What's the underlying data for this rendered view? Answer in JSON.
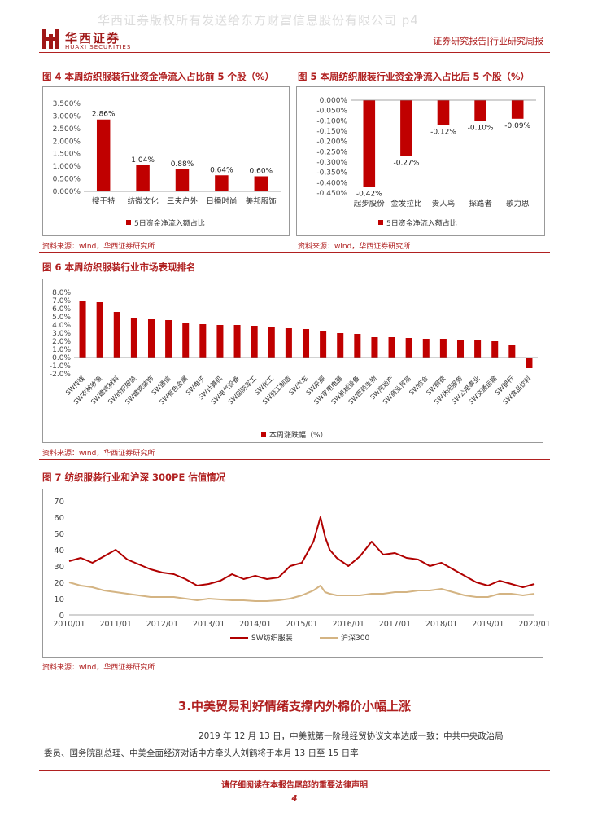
{
  "header": {
    "watermark": "华西证券版权所有发送给东方财富信息股份有限公司 p4",
    "logo_cn": "华西证券",
    "logo_en": "HUAXI SECURITIES",
    "report_type": "证券研究报告|行业研究周报"
  },
  "colors": {
    "accent": "#b02020",
    "bar": "#c00000",
    "line_red": "#b00000",
    "line_tan": "#d4b483"
  },
  "fig4": {
    "title": "图 4 本周纺织服装行业资金净流入占比前 5 个股（%）",
    "source": "资料来源：wind，华西证券研究所",
    "chart_data": {
      "type": "bar",
      "categories": [
        "搜于特",
        "纺微文化",
        "三夫户外",
        "日播时尚",
        "美邦服饰"
      ],
      "values": [
        2.86,
        1.04,
        0.88,
        0.64,
        0.6
      ],
      "value_labels": [
        "2.86%",
        "1.04%",
        "0.88%",
        "0.64%",
        "0.60%"
      ],
      "yticks": [
        "0.000%",
        "0.500%",
        "1.000%",
        "1.500%",
        "2.000%",
        "2.500%",
        "3.000%",
        "3.500%"
      ],
      "ylim": [
        0,
        3.5
      ],
      "legend": "5日资金净流入额占比"
    }
  },
  "fig5": {
    "title": "图 5 本周纺织服装行业资金净流入占比后 5 个股（%）",
    "source": "资料来源：wind，华西证券研究所",
    "chart_data": {
      "type": "bar",
      "categories": [
        "起步股份",
        "金发拉比",
        "贵人鸟",
        "探路者",
        "歌力思"
      ],
      "values": [
        -0.42,
        -0.27,
        -0.12,
        -0.1,
        -0.09
      ],
      "value_labels": [
        "-0.42%",
        "-0.27%",
        "-0.12%",
        "-0.10%",
        "-0.09%"
      ],
      "yticks": [
        "0.000%",
        "-0.050%",
        "-0.100%",
        "-0.150%",
        "-0.200%",
        "-0.250%",
        "-0.300%",
        "-0.350%",
        "-0.400%",
        "-0.450%"
      ],
      "ylim": [
        -0.45,
        0
      ],
      "legend": "5日资金净流入额占比"
    }
  },
  "fig6": {
    "title": "图 6 本周纺织服装行业市场表现排名",
    "source": "资料来源：wind，华西证券研究所",
    "chart_data": {
      "type": "bar",
      "categories": [
        "SW传媒",
        "SW农林牧渔",
        "SW建筑材料",
        "SW纺织服装",
        "SW建筑装饰",
        "SW通信",
        "SW有色金属",
        "SW电子",
        "SW计算机",
        "SW电气设备",
        "SW国防军工",
        "SW化工",
        "SW轻工制造",
        "SW汽车",
        "SW采掘",
        "SW家用电器",
        "SW机械设备",
        "SW医药生物",
        "SW房地产",
        "SW商业贸易",
        "SW综合",
        "SW钢铁",
        "SW休闲服务",
        "SW公用事业",
        "SW交通运输",
        "SW银行",
        "SW食品饮料"
      ],
      "values": [
        6.9,
        6.8,
        5.6,
        4.8,
        4.7,
        4.6,
        4.3,
        4.1,
        4.0,
        4.0,
        3.9,
        3.8,
        3.6,
        3.5,
        3.2,
        3.0,
        2.9,
        2.5,
        2.5,
        2.4,
        2.3,
        2.3,
        2.2,
        2.1,
        2.0,
        1.5,
        -1.3
      ],
      "yticks": [
        "-2.0%",
        "-1.0%",
        "0.0%",
        "1.0%",
        "2.0%",
        "3.0%",
        "4.0%",
        "5.0%",
        "6.0%",
        "7.0%",
        "8.0%"
      ],
      "ylim": [
        -2,
        8
      ],
      "legend": "本周涨跌幅（%）"
    }
  },
  "fig7": {
    "title": "图 7 纺织服装行业和沪深 300PE 估值情况",
    "source": "资料来源：wind，华西证券研究所",
    "chart_data": {
      "type": "line",
      "x_ticks": [
        "2010/01",
        "2011/01",
        "2012/01",
        "2013/01",
        "2014/01",
        "2015/01",
        "2016/01",
        "2017/01",
        "2018/01",
        "2019/01",
        "2020/01"
      ],
      "yticks": [
        "0",
        "10",
        "20",
        "30",
        "40",
        "50",
        "60",
        "70"
      ],
      "ylim": [
        0,
        70
      ],
      "x": [
        2010.0,
        2010.25,
        2010.5,
        2010.75,
        2011.0,
        2011.25,
        2011.5,
        2011.75,
        2012.0,
        2012.25,
        2012.5,
        2012.75,
        2013.0,
        2013.25,
        2013.5,
        2013.75,
        2014.0,
        2014.25,
        2014.5,
        2014.75,
        2015.0,
        2015.25,
        2015.4,
        2015.5,
        2015.6,
        2015.75,
        2016.0,
        2016.25,
        2016.5,
        2016.75,
        2017.0,
        2017.25,
        2017.5,
        2017.75,
        2018.0,
        2018.25,
        2018.5,
        2018.75,
        2019.0,
        2019.25,
        2019.5,
        2019.75,
        2020.0
      ],
      "series": [
        {
          "name": "SW纺织服装",
          "values": [
            33,
            35,
            32,
            36,
            40,
            34,
            31,
            28,
            26,
            25,
            22,
            18,
            19,
            21,
            25,
            22,
            24,
            22,
            23,
            30,
            32,
            45,
            60,
            48,
            40,
            35,
            30,
            36,
            45,
            37,
            38,
            35,
            34,
            30,
            32,
            28,
            24,
            20,
            18,
            21,
            19,
            17,
            19
          ]
        },
        {
          "name": "沪深300",
          "values": [
            20,
            18,
            17,
            15,
            14,
            13,
            12,
            11,
            11,
            11,
            10,
            9,
            10,
            9.5,
            9,
            9,
            8.5,
            8.5,
            9,
            10,
            12,
            15,
            18,
            14,
            13,
            12,
            12,
            12,
            13,
            13,
            14,
            14,
            15,
            15,
            16,
            14,
            12,
            11,
            11,
            13,
            13,
            12,
            13
          ]
        }
      ]
    }
  },
  "section": {
    "title": "3.中美贸易利好情绪支撑内外棉价小幅上涨",
    "para_line1": "2019 年 12 月 13 日，中美就第一阶段经贸协议文本达成一致：中共中央政治局",
    "para_line2": "委员、国务院副总理、中美全面经济对话中方牵头人刘鹤将于本月 13 日至 15 日率"
  },
  "footer": {
    "disclaimer": "请仔细阅读在本报告尾部的重要法律声明",
    "page": "4"
  }
}
